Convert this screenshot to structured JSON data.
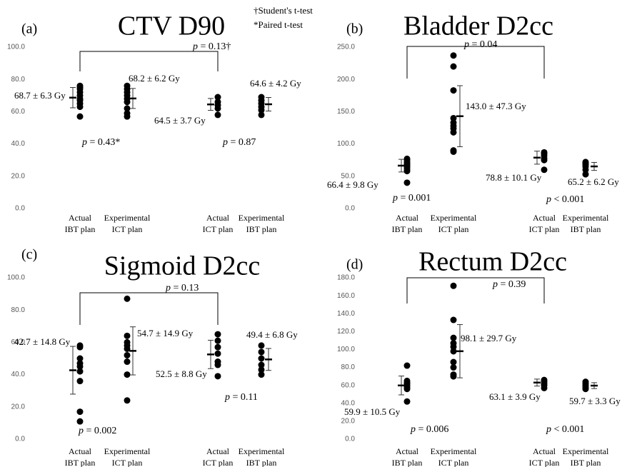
{
  "chart_data": [
    {
      "type": "dot",
      "panel": "(a)",
      "title": "CTV D90",
      "footnotes": [
        "†Student's t-test",
        "*Paired t-test"
      ],
      "categories": [
        [
          "Actual",
          "IBT plan"
        ],
        [
          "Experimental",
          "ICT plan"
        ],
        [
          "Actual",
          "ICT plan"
        ],
        [
          "Experimental",
          "IBT plan"
        ]
      ],
      "ylim": [
        0,
        100
      ],
      "yticks": [
        {
          "value": 0,
          "label": "0.0"
        },
        {
          "value": 20,
          "label": "20.0"
        },
        {
          "value": 40,
          "label": "40.0"
        },
        {
          "value": 60,
          "label": "60.0"
        },
        {
          "value": 80,
          "label": "80.0"
        },
        {
          "value": 100,
          "label": "100.0"
        }
      ],
      "points": [
        [
          57,
          63,
          65,
          67,
          68,
          70,
          72,
          74,
          75,
          76
        ],
        [
          57,
          59,
          62,
          66,
          68,
          70,
          72,
          74,
          76
        ],
        [
          58,
          62,
          64,
          66,
          69
        ],
        [
          58,
          61,
          63,
          65,
          67,
          69
        ]
      ],
      "means": [
        68.7,
        68.2,
        64.5,
        64.6
      ],
      "sds": [
        6.3,
        6.2,
        3.7,
        4.2
      ],
      "value_labels": [
        "68.7 ± 6.3 Gy",
        "68.2 ± 6.2 Gy",
        "64.5 ± 3.7 Gy",
        "64.6 ± 4.2 Gy"
      ],
      "annotations": [
        "p = 0.43*",
        "p = 0.87"
      ],
      "bracket_label": "p = 0.13†",
      "color": "#000000"
    },
    {
      "type": "dot",
      "panel": "(b)",
      "title": "Bladder D2cc",
      "categories": [
        [
          "Actual",
          "IBT plan"
        ],
        [
          "Experimental",
          "ICT plan"
        ],
        [
          "Actual",
          "ICT plan"
        ],
        [
          "Experimental",
          "IBT plan"
        ]
      ],
      "ylim": [
        0,
        250
      ],
      "yticks": [
        {
          "value": 0,
          "label": "0.0"
        },
        {
          "value": 50,
          "label": "50.0"
        },
        {
          "value": 100,
          "label": "100.0"
        },
        {
          "value": 150,
          "label": "150.0"
        },
        {
          "value": 200,
          "label": "200.0"
        },
        {
          "value": 250,
          "label": "250.0"
        }
      ],
      "points": [
        [
          40,
          58,
          61,
          64,
          66,
          68,
          70,
          72,
          75,
          77
        ],
        [
          88,
          90,
          118,
          124,
          128,
          133,
          140,
          183,
          220,
          237
        ],
        [
          60,
          75,
          78,
          82,
          85,
          87
        ],
        [
          53,
          60,
          65,
          68,
          70,
          72
        ]
      ],
      "means": [
        66.4,
        143.0,
        78.8,
        65.2
      ],
      "sds": [
        9.8,
        47.3,
        10.1,
        6.2
      ],
      "value_labels": [
        "66.4 ± 9.8 Gy",
        "143.0 ± 47.3 Gy",
        "78.8 ± 10.1 Gy",
        "65.2 ± 6.2 Gy"
      ],
      "annotations": [
        "p = 0.001",
        "p < 0.001"
      ],
      "bracket_label": "p = 0.04",
      "color": "#000000"
    },
    {
      "type": "dot",
      "panel": "(c)",
      "title": "Sigmoid D2cc",
      "categories": [
        [
          "Actual",
          "IBT plan"
        ],
        [
          "Experimental",
          "ICT plan"
        ],
        [
          "Actual",
          "ICT plan"
        ],
        [
          "Experimental",
          "IBT plan"
        ]
      ],
      "ylim": [
        0,
        100
      ],
      "yticks": [
        {
          "value": 0,
          "label": "0.0"
        },
        {
          "value": 20,
          "label": "20.0"
        },
        {
          "value": 40,
          "label": "40.0"
        },
        {
          "value": 60,
          "label": "60.0"
        },
        {
          "value": 80,
          "label": "80.0"
        },
        {
          "value": 100,
          "label": "100.0"
        }
      ],
      "points": [
        [
          11,
          17,
          36,
          42,
          45,
          47,
          50,
          57,
          58
        ],
        [
          24,
          40,
          48,
          52,
          56,
          58,
          60,
          64,
          87
        ],
        [
          39,
          46,
          48,
          53,
          57,
          61,
          65
        ],
        [
          40,
          43,
          46,
          50,
          54,
          58
        ]
      ],
      "means": [
        42.7,
        54.7,
        52.5,
        49.4
      ],
      "sds": [
        14.8,
        14.9,
        8.8,
        6.8
      ],
      "value_labels": [
        "42.7 ± 14.8 Gy",
        "54.7 ± 14.9 Gy",
        "52.5 ± 8.8 Gy",
        "49.4 ± 6.8 Gy"
      ],
      "annotations": [
        "p = 0.002",
        "p = 0.11"
      ],
      "bracket_label": "p = 0.13",
      "color": "#000000"
    },
    {
      "type": "dot",
      "panel": "(d)",
      "title": "Rectum D2cc",
      "categories": [
        [
          "Actual",
          "IBT plan"
        ],
        [
          "Experimental",
          "ICT plan"
        ],
        [
          "Actual",
          "ICT plan"
        ],
        [
          "Experimental",
          "IBT plan"
        ]
      ],
      "ylim": [
        0,
        180
      ],
      "yticks": [
        {
          "value": 0,
          "label": "0.0"
        },
        {
          "value": 20,
          "label": "20.0"
        },
        {
          "value": 40,
          "label": "40.0"
        },
        {
          "value": 60,
          "label": "60.0"
        },
        {
          "value": 80,
          "label": "80.0"
        },
        {
          "value": 100,
          "label": "100.0"
        },
        {
          "value": 120,
          "label": "120.0"
        },
        {
          "value": 140,
          "label": "140.0"
        },
        {
          "value": 160,
          "label": "160.0"
        },
        {
          "value": 180,
          "label": "180.0"
        }
      ],
      "points": [
        [
          42,
          56,
          58,
          60,
          62,
          63,
          65,
          82
        ],
        [
          70,
          72,
          80,
          86,
          98,
          103,
          107,
          113,
          133,
          171
        ],
        [
          57,
          60,
          62,
          64,
          66
        ],
        [
          56,
          58,
          60,
          62,
          64
        ]
      ],
      "means": [
        59.9,
        98.1,
        63.1,
        59.7
      ],
      "sds": [
        10.5,
        29.7,
        3.9,
        3.3
      ],
      "value_labels": [
        "59.9 ± 10.5 Gy",
        "98.1 ± 29.7 Gy",
        "63.1 ± 3.9 Gy",
        "59.7 ± 3.3 Gy"
      ],
      "annotations": [
        "p = 0.006",
        "p < 0.001"
      ],
      "bracket_label": "p = 0.39",
      "color": "#000000"
    }
  ]
}
